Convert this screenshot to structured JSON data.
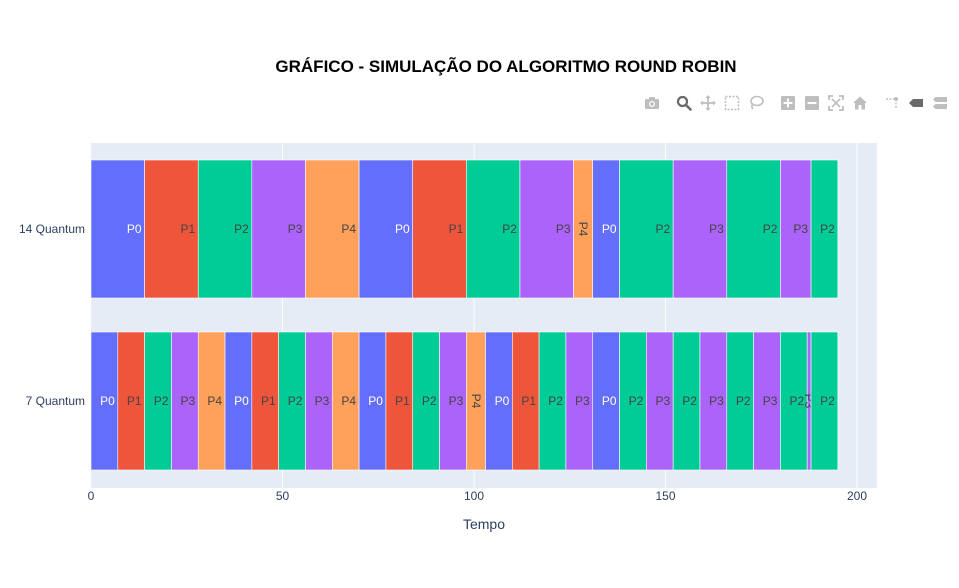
{
  "chart_data": {
    "type": "bar",
    "orientation": "horizontal-stacked",
    "title": "GRÁFICO - SIMULAÇÃO DO ALGORITMO ROUND ROBIN",
    "xlabel": "Tempo",
    "ylabel": "",
    "xlim": [
      0,
      205
    ],
    "xticks": [
      0,
      50,
      100,
      150,
      200
    ],
    "grid": true,
    "legend": "none",
    "colors": {
      "P0": "#636efa",
      "P1": "#ef553b",
      "P2": "#00cc96",
      "P3": "#ab63fa",
      "P4": "#ffa15a"
    },
    "label_colors": {
      "P0": "#ffffff",
      "P1": "#444444",
      "P2": "#444444",
      "P3": "#444444",
      "P4": "#444444"
    },
    "categories": [
      "7 Quantum",
      "14 Quantum"
    ],
    "rows": [
      {
        "category": "14 Quantum",
        "segments": [
          {
            "process": "P0",
            "start": 0,
            "end": 14
          },
          {
            "process": "P1",
            "start": 14,
            "end": 28
          },
          {
            "process": "P2",
            "start": 28,
            "end": 42
          },
          {
            "process": "P3",
            "start": 42,
            "end": 56
          },
          {
            "process": "P4",
            "start": 56,
            "end": 70
          },
          {
            "process": "P0",
            "start": 70,
            "end": 84
          },
          {
            "process": "P1",
            "start": 84,
            "end": 98
          },
          {
            "process": "P2",
            "start": 98,
            "end": 112
          },
          {
            "process": "P3",
            "start": 112,
            "end": 126
          },
          {
            "process": "P4",
            "start": 126,
            "end": 131
          },
          {
            "process": "P0",
            "start": 131,
            "end": 138
          },
          {
            "process": "P2",
            "start": 138,
            "end": 152
          },
          {
            "process": "P3",
            "start": 152,
            "end": 166
          },
          {
            "process": "P2",
            "start": 166,
            "end": 180
          },
          {
            "process": "P3",
            "start": 180,
            "end": 188
          },
          {
            "process": "P2",
            "start": 188,
            "end": 195
          }
        ]
      },
      {
        "category": "7 Quantum",
        "segments": [
          {
            "process": "P0",
            "start": 0,
            "end": 7
          },
          {
            "process": "P1",
            "start": 7,
            "end": 14
          },
          {
            "process": "P2",
            "start": 14,
            "end": 21
          },
          {
            "process": "P3",
            "start": 21,
            "end": 28
          },
          {
            "process": "P4",
            "start": 28,
            "end": 35
          },
          {
            "process": "P0",
            "start": 35,
            "end": 42
          },
          {
            "process": "P1",
            "start": 42,
            "end": 49
          },
          {
            "process": "P2",
            "start": 49,
            "end": 56
          },
          {
            "process": "P3",
            "start": 56,
            "end": 63
          },
          {
            "process": "P4",
            "start": 63,
            "end": 70
          },
          {
            "process": "P0",
            "start": 70,
            "end": 77
          },
          {
            "process": "P1",
            "start": 77,
            "end": 84
          },
          {
            "process": "P2",
            "start": 84,
            "end": 91
          },
          {
            "process": "P3",
            "start": 91,
            "end": 98
          },
          {
            "process": "P4",
            "start": 98,
            "end": 103
          },
          {
            "process": "P0",
            "start": 103,
            "end": 110
          },
          {
            "process": "P1",
            "start": 110,
            "end": 117
          },
          {
            "process": "P2",
            "start": 117,
            "end": 124
          },
          {
            "process": "P3",
            "start": 124,
            "end": 131
          },
          {
            "process": "P0",
            "start": 131,
            "end": 138
          },
          {
            "process": "P2",
            "start": 138,
            "end": 145
          },
          {
            "process": "P3",
            "start": 145,
            "end": 152
          },
          {
            "process": "P2",
            "start": 152,
            "end": 159
          },
          {
            "process": "P3",
            "start": 159,
            "end": 166
          },
          {
            "process": "P2",
            "start": 166,
            "end": 173
          },
          {
            "process": "P3",
            "start": 173,
            "end": 180
          },
          {
            "process": "P2",
            "start": 180,
            "end": 187
          },
          {
            "process": "P3",
            "start": 187,
            "end": 188
          },
          {
            "process": "P2",
            "start": 188,
            "end": 195
          }
        ]
      }
    ]
  },
  "modebar": {
    "icon_color": "#bebebe",
    "active_color": "#6a6a6a",
    "groups": [
      [
        "camera-icon"
      ],
      [
        "zoom-icon",
        "pan-icon",
        "box-select-icon",
        "lasso-select-icon"
      ],
      [
        "zoom-in-icon",
        "zoom-out-icon",
        "autoscale-icon",
        "reset-axes-icon"
      ],
      [
        "spike-lines-icon",
        "hover-closest-icon",
        "hover-compare-icon"
      ]
    ]
  }
}
